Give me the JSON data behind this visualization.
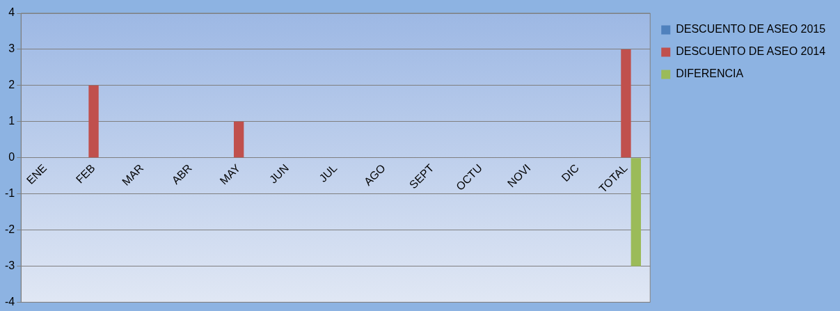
{
  "chart_data": {
    "type": "bar",
    "categories": [
      "ENE",
      "FEB",
      "MAR",
      "ABR",
      "MAY",
      "JUN",
      "JUL",
      "AGO",
      "SEPT",
      "OCTU",
      "NOVI",
      "DIC",
      "TOTAL"
    ],
    "series": [
      {
        "name": "DESCUENTO DE ASEO 2015",
        "color": "#4f81bd",
        "values": [
          0,
          0,
          0,
          0,
          0,
          0,
          0,
          0,
          0,
          0,
          0,
          0,
          0
        ]
      },
      {
        "name": "DESCUENTO DE ASEO 2014",
        "color": "#c0504d",
        "values": [
          0,
          2,
          0,
          0,
          1,
          0,
          0,
          0,
          0,
          0,
          0,
          0,
          3
        ]
      },
      {
        "name": "DIFERENCIA",
        "color": "#9bbb59",
        "values": [
          0,
          0,
          0,
          0,
          0,
          0,
          0,
          0,
          0,
          0,
          0,
          0,
          -3
        ]
      }
    ],
    "ylim": [
      -4,
      4
    ],
    "yticks": [
      -4,
      -3,
      -2,
      -1,
      0,
      1,
      2,
      3,
      4
    ],
    "grid": "y",
    "legend": "right"
  }
}
